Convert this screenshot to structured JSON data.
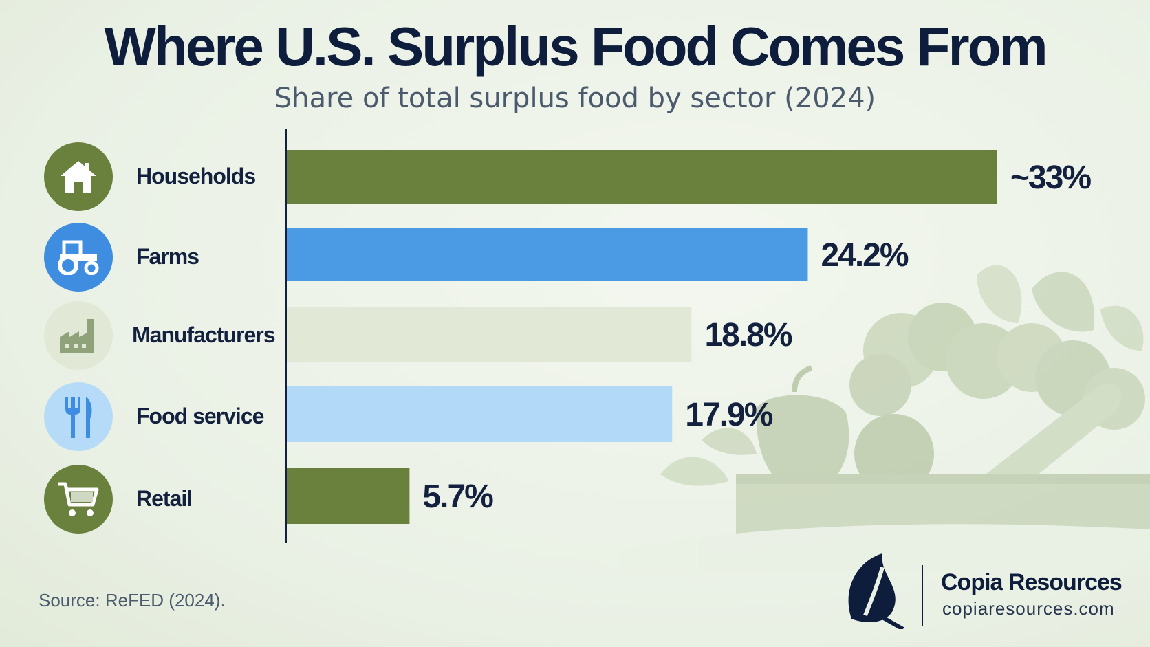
{
  "title": "Where U.S. Surplus Food Comes From",
  "subtitle": "Share of total surplus food by sector (2024)",
  "source": "Source: ReFED (2024).",
  "brand": {
    "name": "Copia Resources",
    "url": "copiaresources.com",
    "icon": "leaf-icon"
  },
  "chart_data": {
    "type": "bar",
    "orientation": "horizontal",
    "title": "Where U.S. Surplus Food Comes From",
    "subtitle": "Share of total surplus food by sector (2024)",
    "categories": [
      "Households",
      "Farms",
      "Manufacturers",
      "Food service",
      "Retail"
    ],
    "values": [
      33,
      24.2,
      18.8,
      17.9,
      5.7
    ],
    "value_labels": [
      "~33%",
      "24.2%",
      "18.8%",
      "17.9%",
      "5.7%"
    ],
    "unit": "%",
    "xlim": [
      0,
      36
    ],
    "grid": false,
    "legend": "none",
    "bar_colors": [
      "#6a813d",
      "#4a9be3",
      "#e1e9d6",
      "#b2d9f8",
      "#6a813d"
    ],
    "icons": [
      {
        "name": "house-icon",
        "bg": "#6a813d"
      },
      {
        "name": "tractor-icon",
        "bg": "#3f8de0"
      },
      {
        "name": "factory-icon",
        "bg": "#e1e9d6"
      },
      {
        "name": "fork-knife-icon",
        "bg": "#b6dbf8"
      },
      {
        "name": "cart-icon",
        "bg": "#6a813d"
      }
    ]
  }
}
